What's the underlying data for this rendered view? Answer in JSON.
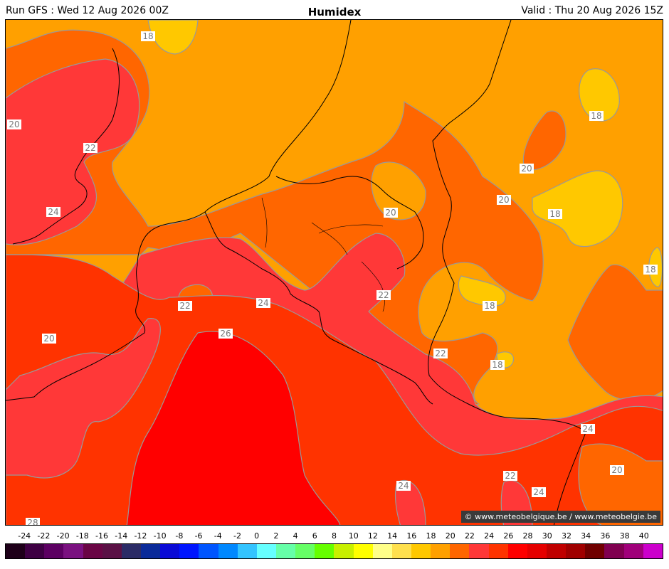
{
  "header": {
    "run": "Run GFS : Wed 12 Aug 2026 00Z",
    "title": "Humidex",
    "valid": "Valid : Thu 20 Aug 2026 15Z"
  },
  "map": {
    "contour_labels": [
      "18",
      "20",
      "22",
      "24",
      "26",
      "28"
    ],
    "copyright": "© www.meteobelgique.be / www.meteobelgie.be"
  },
  "legend": {
    "ticks": [
      "-24",
      "-22",
      "-20",
      "-18",
      "-16",
      "-14",
      "-12",
      "-10",
      "-8",
      "-6",
      "-4",
      "-2",
      "0",
      "2",
      "4",
      "6",
      "8",
      "10",
      "12",
      "14",
      "16",
      "18",
      "20",
      "22",
      "24",
      "26",
      "28",
      "30",
      "32",
      "34",
      "36",
      "38",
      "40"
    ],
    "colors": [
      "#1e0019",
      "#3e0043",
      "#5c0062",
      "#7a1180",
      "#6a0545",
      "#5a1045",
      "#2b2b66",
      "#0a2a99",
      "#0a0ad6",
      "#0015ff",
      "#0055ff",
      "#0088ff",
      "#33c4ff",
      "#66ffff",
      "#66ffa8",
      "#66ff66",
      "#66ff00",
      "#c8f000",
      "#ffff00",
      "#ffff88",
      "#ffe04d",
      "#ffc800",
      "#ffa000",
      "#ff6600",
      "#ff3838",
      "#ff3300",
      "#ff0000",
      "#e50000",
      "#c00000",
      "#a00000",
      "#700000",
      "#800050",
      "#a0007a",
      "#cc00cc"
    ]
  }
}
